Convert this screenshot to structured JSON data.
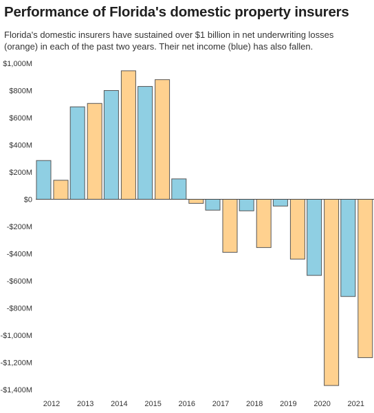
{
  "chart_data": {
    "type": "bar",
    "title": "Performance of Florida's domestic property insurers",
    "subtitle": "Florida's domestic insurers have sustained over $1 billion in net underwriting losses (orange) in each of the past two years. Their net income (blue) has also fallen.",
    "categories": [
      "2012",
      "2013",
      "2014",
      "2015",
      "2016",
      "2017",
      "2018",
      "2019",
      "2020",
      "2021"
    ],
    "series": [
      {
        "key": "net_income",
        "color": "#8fcfe3",
        "values": [
          285,
          680,
          800,
          830,
          150,
          -80,
          -85,
          -50,
          -560,
          -715
        ]
      },
      {
        "key": "underwriting",
        "color": "#ffd18f",
        "values": [
          140,
          705,
          945,
          880,
          -30,
          -390,
          -355,
          -440,
          -1370,
          -1165
        ]
      }
    ],
    "y_ticks": [
      1000,
      800,
      600,
      400,
      200,
      0,
      -200,
      -400,
      -600,
      -800,
      -1000,
      -1200,
      -1400
    ],
    "y_tick_labels": [
      "$1,000M",
      "$800M",
      "$600M",
      "$400M",
      "$200M",
      "$0",
      "-$200M",
      "-$400M",
      "-$600M",
      "-$800M",
      "-$1,000M",
      "-$1,200M",
      "-$1,400M"
    ],
    "ylim": [
      -1400,
      1000
    ],
    "xlabel": "",
    "ylabel": "",
    "grid": false,
    "legend": "none"
  }
}
